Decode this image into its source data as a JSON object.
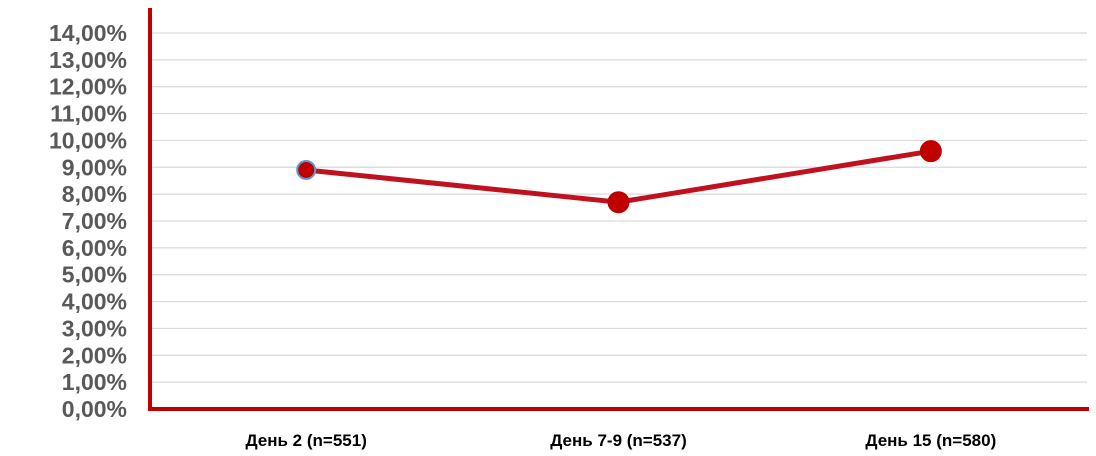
{
  "chart_data": {
    "type": "line",
    "categories": [
      "День 2 (n=551)",
      "День 7-9 (n=537)",
      "День 15 (n=580)"
    ],
    "series": [
      {
        "values": [
          8.9,
          7.7,
          9.6
        ]
      }
    ],
    "y_ticks": [
      "0,00%",
      "1,00%",
      "2,00%",
      "3,00%",
      "4,00%",
      "5,00%",
      "6,00%",
      "7,00%",
      "8,00%",
      "9,00%",
      "10,00%",
      "11,00%",
      "12,00%",
      "13,00%",
      "14,00%"
    ],
    "ylim": [
      0,
      14
    ],
    "grid": true,
    "legend": "none",
    "colors": {
      "line": "#c0111f",
      "marker": "#c00000",
      "axis": "#c00000",
      "first_marker_edge": "#5b9bd5"
    }
  }
}
